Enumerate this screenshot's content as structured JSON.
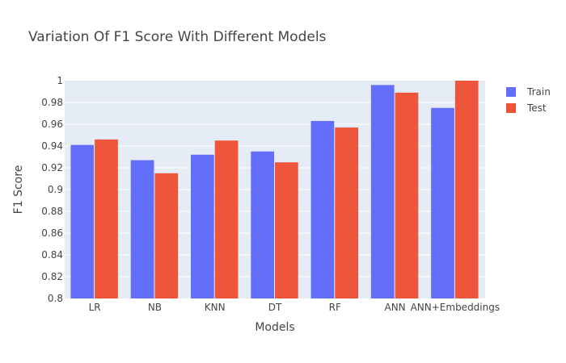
{
  "chart_data": {
    "type": "bar",
    "title": "Variation Of F1 Score With Different Models",
    "xlabel": "Models",
    "ylabel": "F1 Score",
    "categories": [
      "LR",
      "NB",
      "KNN",
      "DT",
      "RF",
      "ANN",
      "ANN+Embeddings"
    ],
    "series": [
      {
        "name": "Train",
        "color": "#636efa",
        "values": [
          0.941,
          0.927,
          0.932,
          0.935,
          0.963,
          0.996,
          0.975
        ]
      },
      {
        "name": "Test",
        "color": "#ef553b",
        "values": [
          0.946,
          0.915,
          0.945,
          0.925,
          0.957,
          0.989,
          1.0
        ]
      }
    ],
    "ylim": [
      0.8,
      1.0
    ],
    "yticks": [
      0.8,
      0.82,
      0.84,
      0.86,
      0.88,
      0.9,
      0.92,
      0.94,
      0.96,
      0.98,
      1
    ],
    "ytick_labels": [
      "0.8",
      "0.82",
      "0.84",
      "0.86",
      "0.88",
      "0.9",
      "0.92",
      "0.94",
      "0.96",
      "0.98",
      "1"
    ],
    "grid": true,
    "legend_position": "top-right",
    "plot_background": "#e5ecf6",
    "gridline_color": "#ffffff"
  }
}
